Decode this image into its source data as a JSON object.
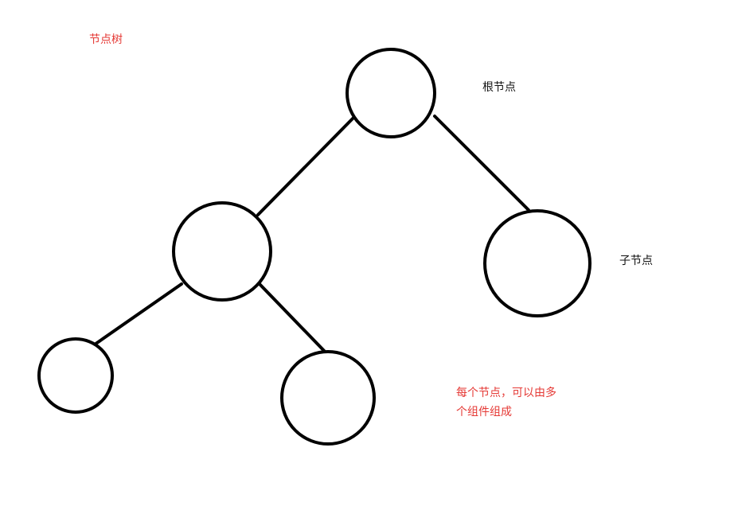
{
  "colors": {
    "accent_red": "#e53935",
    "text_black": "#111111",
    "stroke": "#000000",
    "background": "#ffffff"
  },
  "labels": {
    "title": "节点树",
    "root": "根节点",
    "child": "子节点",
    "note_line1": "每个节点，可以由多",
    "note_line2": "个组件组成"
  }
}
